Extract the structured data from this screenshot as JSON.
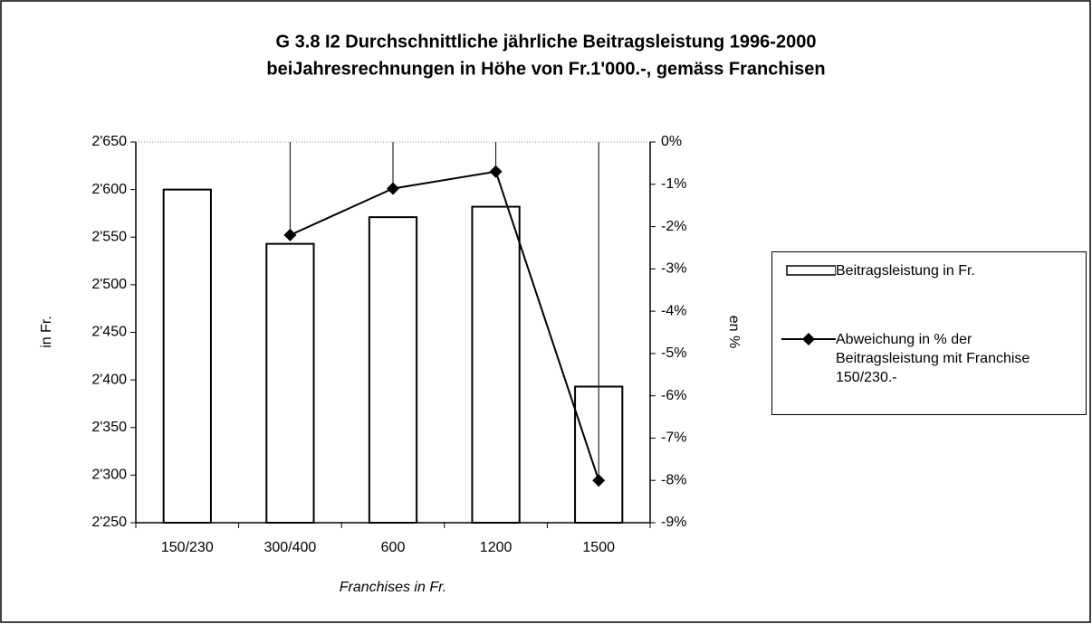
{
  "chart_data": {
    "type": "bar",
    "title": "G 3.8 I2 Durchschnittliche jährliche Beitragsleistung 1996-2000",
    "subtitle": "beiJahresrechnungen in Höhe von Fr.1'000.-, gemäss Franchisen",
    "xlabel": "Franchises in Fr.",
    "ylabel": "in Fr.",
    "y2label": "en %",
    "categories": [
      "150/230",
      "300/400",
      "600",
      "1200",
      "1500"
    ],
    "series": [
      {
        "name": "Beitragsleistung in Fr.",
        "type": "bar",
        "color": "#ffffff",
        "values": [
          2600,
          2543,
          2571,
          2582,
          2393
        ]
      },
      {
        "name": "Abweichung in % der Beitragsleistung mit Franchise 150/230.-",
        "type": "line",
        "axis": "y2",
        "color": "#000000",
        "values": [
          null,
          -2.2,
          -1.1,
          -0.7,
          -8.0
        ]
      }
    ],
    "ylim": [
      2250,
      2650
    ],
    "yticks": [
      {
        "value": 2250,
        "label": "2'250"
      },
      {
        "value": 2300,
        "label": "2'300"
      },
      {
        "value": 2350,
        "label": "2'350"
      },
      {
        "value": 2400,
        "label": "2'400"
      },
      {
        "value": 2450,
        "label": "2'450"
      },
      {
        "value": 2500,
        "label": "2'500"
      },
      {
        "value": 2550,
        "label": "2'550"
      },
      {
        "value": 2600,
        "label": "2'600"
      },
      {
        "value": 2650,
        "label": "2'650"
      }
    ],
    "y2lim": [
      -9,
      0
    ],
    "y2ticks": [
      {
        "value": 0,
        "label": "0%"
      },
      {
        "value": -1,
        "label": "-1%"
      },
      {
        "value": -2,
        "label": "-2%"
      },
      {
        "value": -3,
        "label": "-3%"
      },
      {
        "value": -4,
        "label": "-4%"
      },
      {
        "value": -5,
        "label": "-5%"
      },
      {
        "value": -6,
        "label": "-6%"
      },
      {
        "value": -7,
        "label": "-7%"
      },
      {
        "value": -8,
        "label": "-8%"
      },
      {
        "value": -9,
        "label": "-9%"
      }
    ],
    "legend": "right"
  }
}
